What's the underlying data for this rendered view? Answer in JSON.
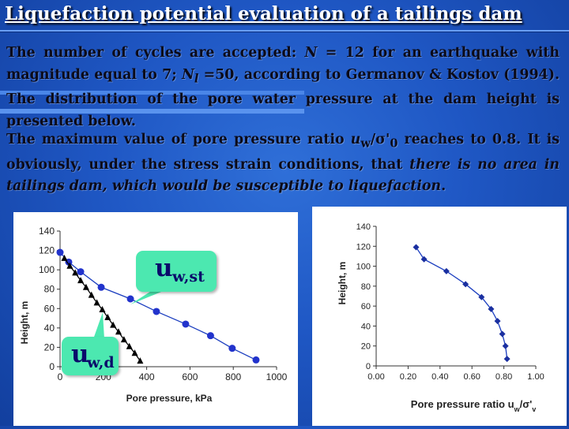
{
  "slide": {
    "title": "Liquefaction potential evaluation of a tailings dam",
    "paragraph1": {
      "t1": "The number of cycles are accepted: ",
      "t2": "N",
      "t3": " = 12 for an earthquake with magnitude equal to 7; ",
      "t4": "N",
      "t4sub": "l",
      "t5": " =50, according to Germanov & Kostov (1994). The distribution of the pore water pressure at the dam height is presented below."
    },
    "paragraph2": {
      "t1": "The maximum value of pore pressure ratio ",
      "t2": "u",
      "t2sub": "w",
      "t3": "/",
      "t4": "σ",
      "t5": "'",
      "t5sub": "0",
      "t6": " reaches to 0.8. It is obviously, under the stress strain conditions, that ",
      "t7": "there is no area in tailings dam, which would be susceptible to liquefaction",
      "t8": "."
    },
    "callouts": {
      "st_main": "u",
      "st_sub": "w,st",
      "d_main": "u",
      "d_sub": "w,d"
    },
    "colors": {
      "background": "#1f57c4",
      "callout": "#4ce8b0",
      "series_line": "#1a3dbf",
      "series_marker": "#2233cc",
      "triangle_series": "#000000"
    }
  },
  "chart_data": [
    {
      "type": "scatter",
      "xlabel": "Pore pressure, kPa",
      "ylabel": "Height, m",
      "xlim": [
        0,
        1000
      ],
      "ylim": [
        0,
        140
      ],
      "xticks": [
        0,
        200,
        400,
        600,
        800,
        1000
      ],
      "yticks": [
        0,
        20,
        40,
        60,
        80,
        100,
        120,
        140
      ],
      "grid": false,
      "series": [
        {
          "marker": "circle",
          "points": [
            [
              0,
              118
            ],
            [
              40,
              108
            ],
            [
              95,
              98
            ],
            [
              190,
              82
            ],
            [
              325,
              70
            ],
            [
              445,
              57
            ],
            [
              580,
              44
            ],
            [
              695,
              32
            ],
            [
              795,
              19
            ],
            [
              905,
              7
            ]
          ]
        },
        {
          "marker": "triangle",
          "points": [
            [
              20,
              112
            ],
            [
              45,
              104
            ],
            [
              70,
              97
            ],
            [
              95,
              89
            ],
            [
              120,
              82
            ],
            [
              145,
              74
            ],
            [
              170,
              66
            ],
            [
              195,
              59
            ],
            [
              220,
              51
            ],
            [
              245,
              43
            ],
            [
              270,
              36
            ],
            [
              295,
              28
            ],
            [
              320,
              21
            ],
            [
              345,
              14
            ],
            [
              370,
              6
            ]
          ]
        }
      ]
    },
    {
      "type": "line",
      "xlabel": "Pore pressure ratio u",
      "xlabel_sub": "w",
      "xlabel_tail": "/σ'",
      "xlabel_tail_sub": "v",
      "ylabel": "Height, m",
      "xlim": [
        0,
        1.0
      ],
      "ylim": [
        0,
        140
      ],
      "xticks": [
        "0.00",
        "0.20",
        "0.40",
        "0.60",
        "0.80",
        "1.00"
      ],
      "yticks": [
        "0",
        "20",
        "40",
        "60",
        "80",
        "100",
        "120",
        "140"
      ],
      "grid": false,
      "series": [
        {
          "marker": "diamond",
          "points": [
            [
              0.25,
              119
            ],
            [
              0.3,
              107
            ],
            [
              0.44,
              95
            ],
            [
              0.56,
              82
            ],
            [
              0.66,
              69
            ],
            [
              0.72,
              57
            ],
            [
              0.76,
              45
            ],
            [
              0.79,
              32
            ],
            [
              0.81,
              20
            ],
            [
              0.82,
              7
            ]
          ]
        }
      ]
    }
  ]
}
